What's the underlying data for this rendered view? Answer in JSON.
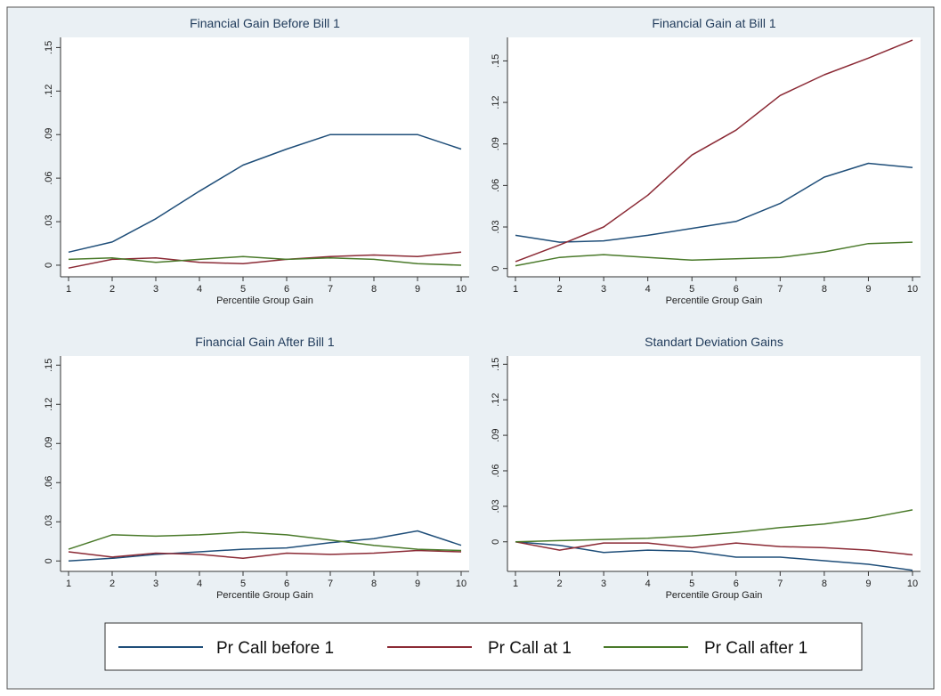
{
  "figure": {
    "background": "#eaf0f4",
    "plot_background": "#ffffff",
    "border_color": "#555555"
  },
  "legend": {
    "items": [
      {
        "label": "Pr Call before 1",
        "color": "#1f4e79"
      },
      {
        "label": "Pr Call at 1",
        "color": "#8b2a35"
      },
      {
        "label": "Pr Call after 1",
        "color": "#4a7a2a"
      }
    ]
  },
  "chart_data": [
    {
      "type": "line",
      "title": "Financial Gain Before Bill 1",
      "xlabel": "Percentile Group Gain",
      "ylabel": "",
      "x": [
        1,
        2,
        3,
        4,
        5,
        6,
        7,
        8,
        9,
        10
      ],
      "xticks": [
        "1",
        "2",
        "3",
        "4",
        "5",
        "6",
        "7",
        "8",
        "9",
        "10"
      ],
      "ylim": [
        -0.008,
        0.157
      ],
      "yticks": [
        0,
        0.03,
        0.06,
        0.09,
        0.12,
        0.15
      ],
      "ytick_labels": [
        "0",
        ".03",
        ".06",
        ".09",
        ".12",
        ".15"
      ],
      "grid": false,
      "series": [
        {
          "name": "Pr Call before 1",
          "color": "#1f4e79",
          "values": [
            0.009,
            0.016,
            0.032,
            0.051,
            0.069,
            0.08,
            0.09,
            0.09,
            0.09,
            0.08
          ]
        },
        {
          "name": "Pr Call at 1",
          "color": "#8b2a35",
          "values": [
            -0.002,
            0.004,
            0.005,
            0.002,
            0.001,
            0.004,
            0.006,
            0.007,
            0.006,
            0.009
          ]
        },
        {
          "name": "Pr Call after 1",
          "color": "#4a7a2a",
          "values": [
            0.004,
            0.005,
            0.002,
            0.004,
            0.006,
            0.004,
            0.005,
            0.004,
            0.001,
            0.0
          ]
        }
      ]
    },
    {
      "type": "line",
      "title": "Financial Gain at Bill 1",
      "xlabel": "Percentile Group Gain",
      "ylabel": "",
      "x": [
        1,
        2,
        3,
        4,
        5,
        6,
        7,
        8,
        9,
        10
      ],
      "xticks": [
        "1",
        "2",
        "3",
        "4",
        "5",
        "6",
        "7",
        "8",
        "9",
        "10"
      ],
      "ylim": [
        -0.006,
        0.167
      ],
      "yticks": [
        0,
        0.03,
        0.06,
        0.09,
        0.12,
        0.15
      ],
      "ytick_labels": [
        "0",
        ".03",
        ".06",
        ".09",
        ".12",
        ".15"
      ],
      "grid": false,
      "series": [
        {
          "name": "Pr Call before 1",
          "color": "#1f4e79",
          "values": [
            0.024,
            0.019,
            0.02,
            0.024,
            0.029,
            0.034,
            0.047,
            0.066,
            0.076,
            0.073
          ]
        },
        {
          "name": "Pr Call at 1",
          "color": "#8b2a35",
          "values": [
            0.005,
            0.017,
            0.03,
            0.053,
            0.082,
            0.1,
            0.125,
            0.14,
            0.152,
            0.165
          ]
        },
        {
          "name": "Pr Call after 1",
          "color": "#4a7a2a",
          "values": [
            0.002,
            0.008,
            0.01,
            0.008,
            0.006,
            0.007,
            0.008,
            0.012,
            0.018,
            0.019
          ]
        }
      ]
    },
    {
      "type": "line",
      "title": "Financial Gain After Bill 1",
      "xlabel": "Percentile Group Gain",
      "ylabel": "",
      "x": [
        1,
        2,
        3,
        4,
        5,
        6,
        7,
        8,
        9,
        10
      ],
      "xticks": [
        "1",
        "2",
        "3",
        "4",
        "5",
        "6",
        "7",
        "8",
        "9",
        "10"
      ],
      "ylim": [
        -0.008,
        0.157
      ],
      "yticks": [
        0,
        0.03,
        0.06,
        0.09,
        0.12,
        0.15
      ],
      "ytick_labels": [
        "0",
        ".03",
        ".06",
        ".09",
        ".12",
        ".15"
      ],
      "grid": false,
      "series": [
        {
          "name": "Pr Call before 1",
          "color": "#1f4e79",
          "values": [
            0.0,
            0.002,
            0.005,
            0.007,
            0.009,
            0.01,
            0.014,
            0.017,
            0.023,
            0.012
          ]
        },
        {
          "name": "Pr Call at 1",
          "color": "#8b2a35",
          "values": [
            0.007,
            0.003,
            0.006,
            0.005,
            0.002,
            0.006,
            0.005,
            0.006,
            0.008,
            0.007
          ]
        },
        {
          "name": "Pr Call after 1",
          "color": "#4a7a2a",
          "values": [
            0.009,
            0.02,
            0.019,
            0.02,
            0.022,
            0.02,
            0.016,
            0.012,
            0.009,
            0.008
          ]
        }
      ]
    },
    {
      "type": "line",
      "title": "Standart Deviation Gains",
      "xlabel": "Percentile Group Gain",
      "ylabel": "",
      "x": [
        1,
        2,
        3,
        4,
        5,
        6,
        7,
        8,
        9,
        10
      ],
      "xticks": [
        "1",
        "2",
        "3",
        "4",
        "5",
        "6",
        "7",
        "8",
        "9",
        "10"
      ],
      "ylim": [
        -0.025,
        0.157
      ],
      "yticks": [
        0,
        0.03,
        0.06,
        0.09,
        0.12,
        0.15
      ],
      "ytick_labels": [
        "0",
        ".03",
        ".06",
        ".09",
        ".12",
        ".15"
      ],
      "grid": false,
      "series": [
        {
          "name": "Pr Call before 1",
          "color": "#1f4e79",
          "values": [
            0.0,
            -0.003,
            -0.009,
            -0.007,
            -0.008,
            -0.013,
            -0.013,
            -0.016,
            -0.019,
            -0.024
          ]
        },
        {
          "name": "Pr Call at 1",
          "color": "#8b2a35",
          "values": [
            0.0,
            -0.007,
            -0.001,
            -0.001,
            -0.005,
            -0.001,
            -0.004,
            -0.005,
            -0.007,
            -0.011
          ]
        },
        {
          "name": "Pr Call after 1",
          "color": "#4a7a2a",
          "values": [
            0.0,
            0.001,
            0.002,
            0.003,
            0.005,
            0.008,
            0.012,
            0.015,
            0.02,
            0.027
          ]
        }
      ]
    }
  ]
}
